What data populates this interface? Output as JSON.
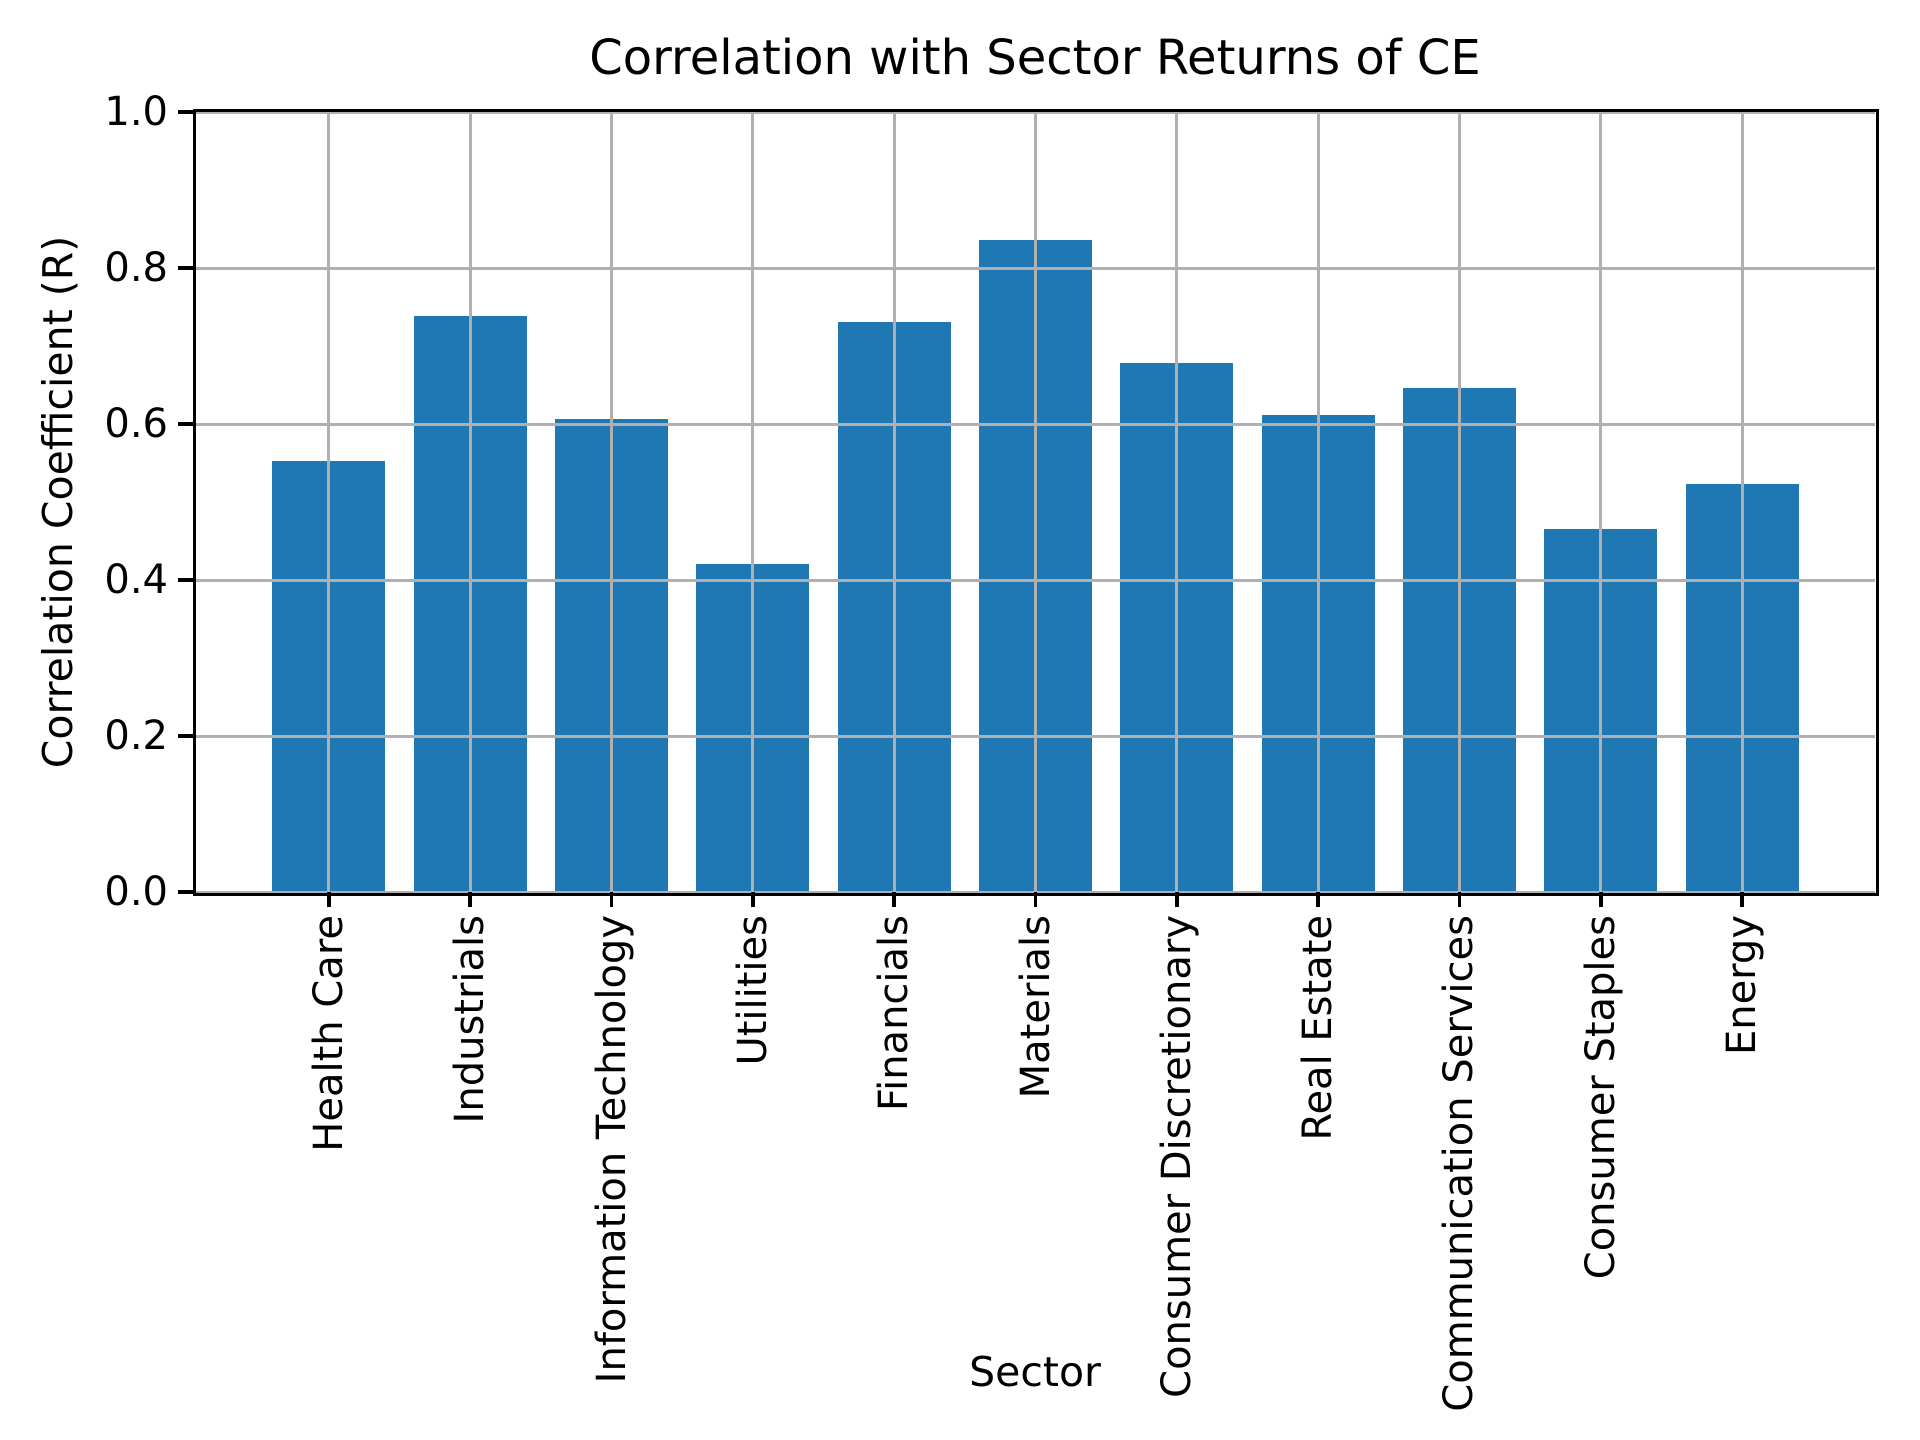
{
  "chart_data": {
    "type": "bar",
    "title": "Correlation with Sector Returns of CE",
    "xlabel": "Sector",
    "ylabel": "Correlation Coefficient (R)",
    "categories": [
      "Health Care",
      "Industrials",
      "Information Technology",
      "Utilities",
      "Financials",
      "Materials",
      "Consumer Discretionary",
      "Real Estate",
      "Communication Services",
      "Consumer Staples",
      "Energy"
    ],
    "values": [
      0.552,
      0.738,
      0.607,
      0.421,
      0.731,
      0.836,
      0.678,
      0.612,
      0.646,
      0.466,
      0.523
    ],
    "ylim": [
      0.0,
      1.0
    ],
    "ytick_labels": [
      "0.0",
      "0.2",
      "0.4",
      "0.6",
      "0.8",
      "1.0"
    ],
    "ytick_values": [
      0.0,
      0.2,
      0.4,
      0.6,
      0.8,
      1.0
    ],
    "bar_width_fraction": 0.8,
    "grid": true,
    "legend": null,
    "colors": {
      "bar": "#1f77b4",
      "grid": "#b0b0b0",
      "spine": "#000000",
      "text": "#000000",
      "background": "#ffffff"
    }
  }
}
